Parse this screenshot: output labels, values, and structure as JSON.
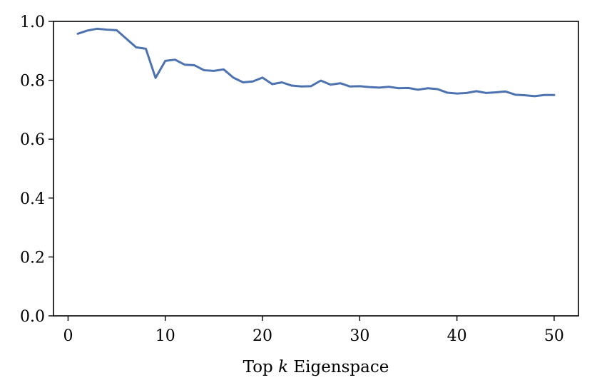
{
  "chart_data": {
    "type": "line",
    "title": "",
    "xlabel": "Top k Eigenspace",
    "xlabel_parts": {
      "before": "Top ",
      "var": "k",
      "after": " Eigenspace"
    },
    "ylabel": "",
    "xlim": [
      -1.5,
      52.5
    ],
    "ylim": [
      0.0,
      1.0
    ],
    "xticks": [
      0,
      10,
      20,
      30,
      40,
      50
    ],
    "xtick_labels": [
      "0",
      "10",
      "20",
      "30",
      "40",
      "50"
    ],
    "yticks": [
      0.0,
      0.2,
      0.4,
      0.6,
      0.8,
      1.0
    ],
    "ytick_labels": [
      "0.0",
      "0.2",
      "0.4",
      "0.6",
      "0.8",
      "1.0"
    ],
    "grid": false,
    "legend": "none",
    "series": [
      {
        "color": "#4c72b0",
        "x": [
          1,
          2,
          3,
          4,
          5,
          6,
          7,
          8,
          9,
          10,
          11,
          12,
          13,
          14,
          15,
          16,
          17,
          18,
          19,
          20,
          21,
          22,
          23,
          24,
          25,
          26,
          27,
          28,
          29,
          30,
          31,
          32,
          33,
          34,
          35,
          36,
          37,
          38,
          39,
          40,
          41,
          42,
          43,
          44,
          45,
          46,
          47,
          48,
          49,
          50
        ],
        "values": [
          0.958,
          0.969,
          0.975,
          0.972,
          0.97,
          0.941,
          0.912,
          0.907,
          0.808,
          0.866,
          0.87,
          0.853,
          0.851,
          0.834,
          0.832,
          0.837,
          0.809,
          0.793,
          0.796,
          0.809,
          0.787,
          0.793,
          0.782,
          0.779,
          0.78,
          0.799,
          0.785,
          0.79,
          0.779,
          0.78,
          0.777,
          0.775,
          0.778,
          0.773,
          0.774,
          0.768,
          0.773,
          0.77,
          0.758,
          0.755,
          0.757,
          0.763,
          0.757,
          0.759,
          0.762,
          0.751,
          0.749,
          0.746,
          0.75,
          0.75
        ]
      }
    ]
  }
}
